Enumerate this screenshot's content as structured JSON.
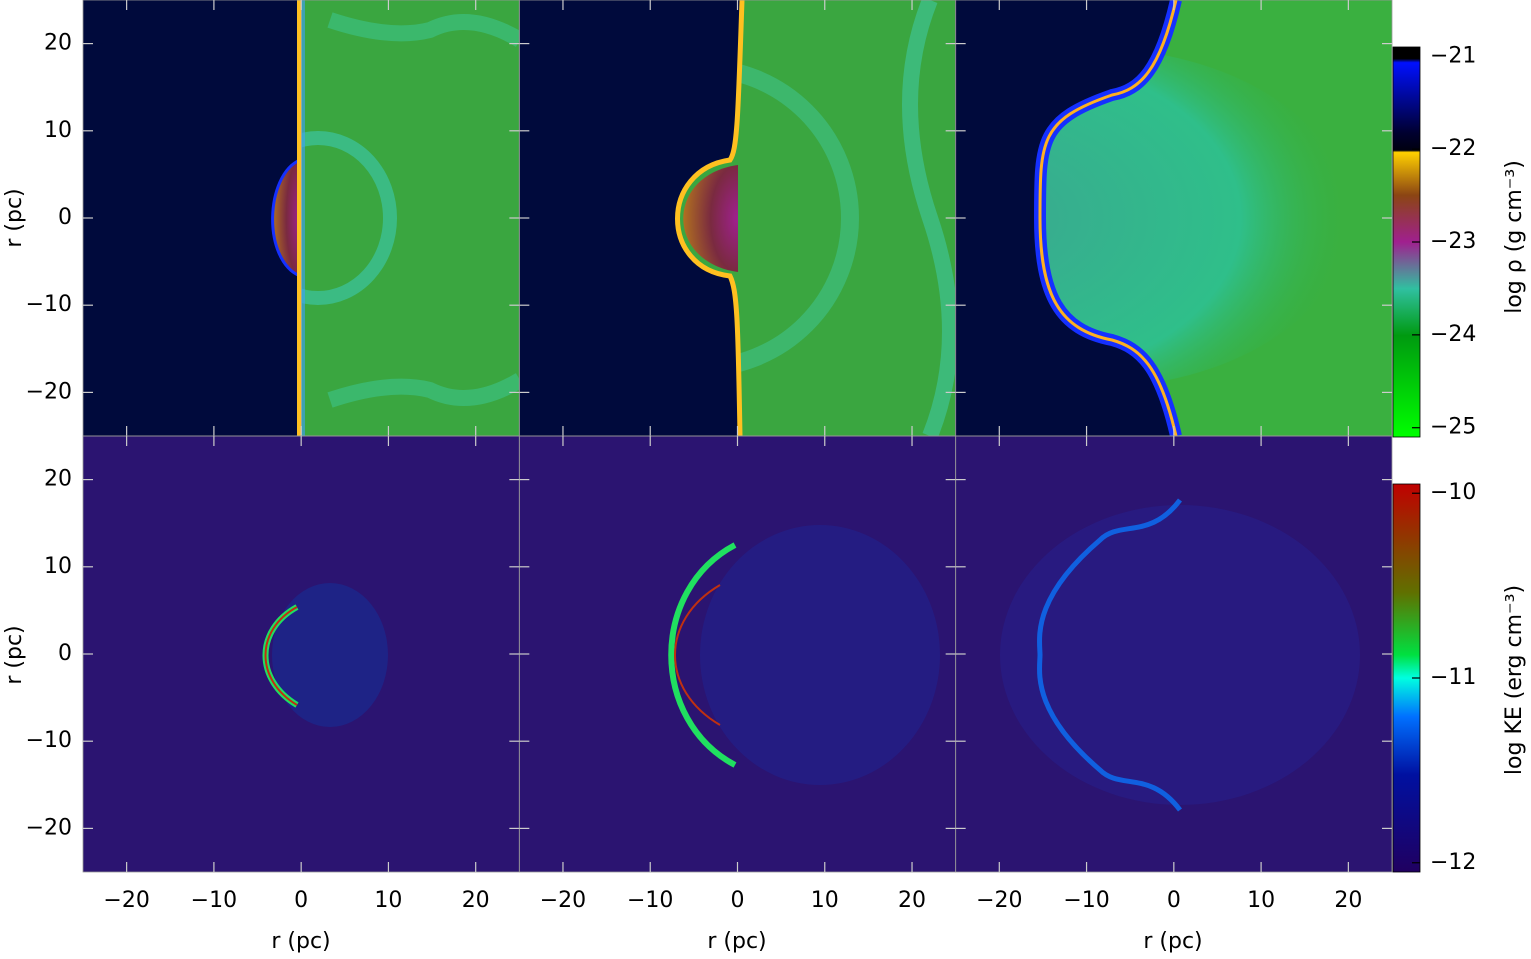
{
  "chart_data": {
    "type": "image-grid",
    "xlabel": "r (pc)",
    "ylabel": "r (pc)",
    "xlim": [
      -25,
      25
    ],
    "ylim": [
      -25,
      25
    ],
    "xticks": [
      {
        "value": -20,
        "label": "−20"
      },
      {
        "value": -10,
        "label": "−10"
      },
      0,
      10,
      20
    ],
    "yticks": [
      {
        "value": -20,
        "label": "−20"
      },
      {
        "value": -10,
        "label": "−10"
      },
      0,
      10,
      20
    ],
    "colorbars": [
      {
        "label": "log ρ (g cm⁻³)",
        "lim": [
          -25.1,
          -20.9
        ],
        "ticks": [
          {
            "value": -21,
            "label": "−21"
          },
          {
            "value": -22,
            "label": "−22"
          },
          {
            "value": -23,
            "label": "−23"
          },
          {
            "value": -24,
            "label": "−24"
          },
          {
            "value": -25,
            "label": "−25"
          }
        ]
      },
      {
        "label": "log KE (erg cm⁻³)",
        "lim": [
          -12.05,
          -9.95
        ],
        "ticks": [
          {
            "value": -10,
            "label": "−10"
          },
          {
            "value": -11,
            "label": "−11"
          },
          {
            "value": -12,
            "label": "−12"
          }
        ]
      }
    ]
  }
}
